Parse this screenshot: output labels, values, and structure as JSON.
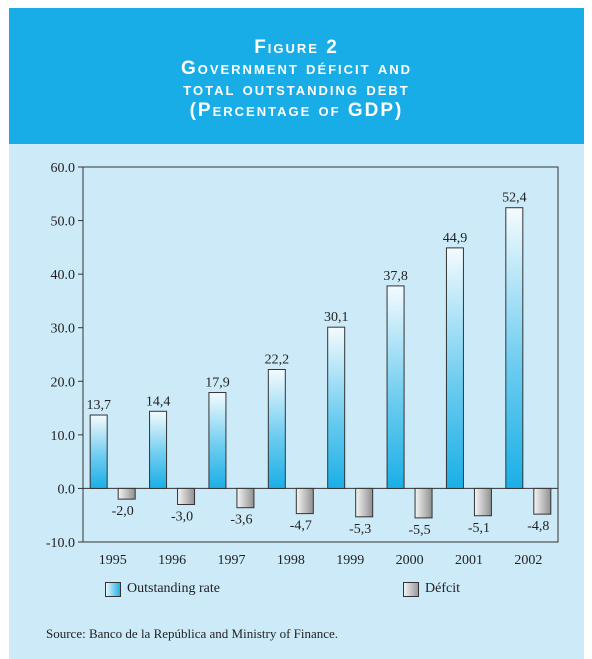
{
  "header": {
    "figure_label": "Figure 2",
    "title_line1": "Government déficit and",
    "title_line2": "total outstanding debt",
    "subtitle": "(Percentage of GDP)"
  },
  "chart_data": {
    "type": "bar",
    "categories": [
      "1995",
      "1996",
      "1997",
      "1998",
      "1999",
      "2000",
      "2001",
      "2002"
    ],
    "series": [
      {
        "name": "Outstanding rate",
        "values": [
          13.7,
          14.4,
          17.9,
          22.2,
          30.1,
          37.8,
          44.9,
          52.4
        ],
        "labels": [
          "13,7",
          "14,4",
          "17,9",
          "22,2",
          "30,1",
          "37,8",
          "44,9",
          "52,4"
        ]
      },
      {
        "name": "Défcit",
        "values": [
          -2.0,
          -3.0,
          -3.6,
          -4.7,
          -5.3,
          -5.5,
          -5.1,
          -4.8
        ],
        "labels": [
          "-2,0",
          "-3,0",
          "-3,6",
          "-4,7",
          "-5,3",
          "-5,5",
          "-5,1",
          "-4,8"
        ]
      }
    ],
    "ylim": [
      -10,
      60
    ],
    "yticks": [
      "60.0",
      "50.0",
      "40.0",
      "30.0",
      "20.0",
      "10.0",
      "0.0",
      "-10.0"
    ],
    "ytick_values": [
      60,
      50,
      40,
      30,
      20,
      10,
      0,
      -10
    ],
    "legend_position": "bottom",
    "grid": false,
    "colors": {
      "outstanding": "#1eb1e6",
      "deficit": "#9a9a9a",
      "background": "#cdeaf8",
      "header": "#18ade6"
    }
  },
  "source": "Source: Banco de la República and Ministry of Finance."
}
